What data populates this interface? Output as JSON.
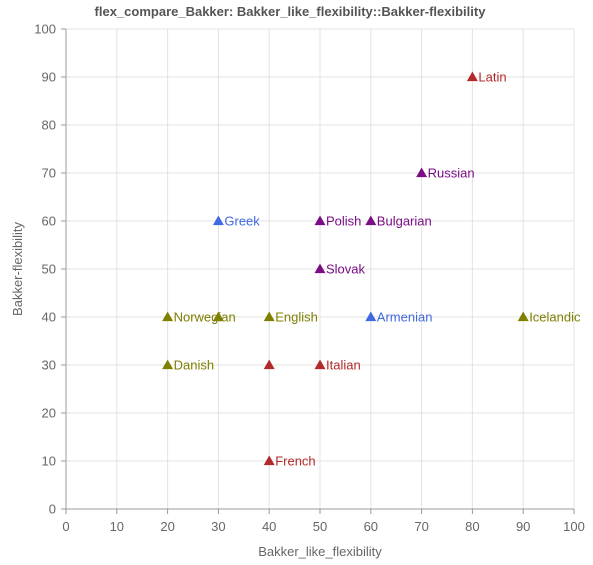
{
  "chart_data": {
    "type": "scatter",
    "title": "flex_compare_Bakker: Bakker_like_flexibility::Bakker-flexibility",
    "xlabel": "Bakker_like_flexibility",
    "ylabel": "Bakker-flexibility",
    "xlim": [
      0,
      100
    ],
    "ylim": [
      0,
      100
    ],
    "xticks": [
      0,
      10,
      20,
      30,
      40,
      50,
      60,
      70,
      80,
      90,
      100
    ],
    "yticks": [
      0,
      10,
      20,
      30,
      40,
      50,
      60,
      70,
      80,
      90,
      100
    ],
    "grid": true,
    "marker": "triangle",
    "colors": {
      "red": "#b22a2a",
      "purple": "#7b0e86",
      "blue": "#4169e1",
      "olive": "#7f7f00"
    },
    "points": [
      {
        "x": 80,
        "y": 90,
        "label": "Latin",
        "color": "red"
      },
      {
        "x": 70,
        "y": 70,
        "label": "Russian",
        "color": "purple"
      },
      {
        "x": 30,
        "y": 60,
        "label": "Greek",
        "color": "blue"
      },
      {
        "x": 50,
        "y": 60,
        "label": "Polish",
        "color": "purple"
      },
      {
        "x": 60,
        "y": 60,
        "label": "Bulgarian",
        "color": "purple"
      },
      {
        "x": 50,
        "y": 50,
        "label": "Slovak",
        "color": "purple"
      },
      {
        "x": 20,
        "y": 40,
        "label": "Norwegian",
        "color": "olive"
      },
      {
        "x": 30,
        "y": 40,
        "label": "",
        "color": "olive"
      },
      {
        "x": 40,
        "y": 40,
        "label": "English",
        "color": "olive"
      },
      {
        "x": 60,
        "y": 40,
        "label": "Armenian",
        "color": "blue"
      },
      {
        "x": 90,
        "y": 40,
        "label": "Icelandic",
        "color": "olive"
      },
      {
        "x": 20,
        "y": 30,
        "label": "Danish",
        "color": "olive"
      },
      {
        "x": 40,
        "y": 30,
        "label": "",
        "color": "red"
      },
      {
        "x": 50,
        "y": 30,
        "label": "Italian",
        "color": "red"
      },
      {
        "x": 40,
        "y": 10,
        "label": "French",
        "color": "red"
      }
    ]
  }
}
